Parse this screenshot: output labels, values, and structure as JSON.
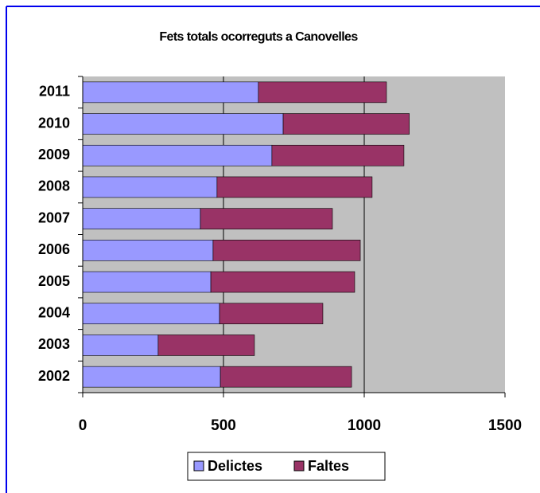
{
  "chart_data": {
    "type": "stacked_bar_horizontal",
    "title": "Fets totals ocorreguts a Canovelles",
    "categories": [
      "2002",
      "2003",
      "2004",
      "2005",
      "2006",
      "2007",
      "2008",
      "2009",
      "2010",
      "2011"
    ],
    "series": [
      {
        "name": "Delictes",
        "color": "#9999ff",
        "values": [
          489,
          268,
          486,
          455,
          463,
          418,
          477,
          672,
          712,
          624
        ]
      },
      {
        "name": "Faltes",
        "color": "#993366",
        "values": [
          466,
          342,
          367,
          511,
          523,
          469,
          551,
          469,
          448,
          455
        ]
      }
    ],
    "xlim": [
      0,
      1500
    ],
    "xticks": [
      0,
      500,
      1000,
      1500
    ],
    "grid": true,
    "legend": "bottom"
  }
}
